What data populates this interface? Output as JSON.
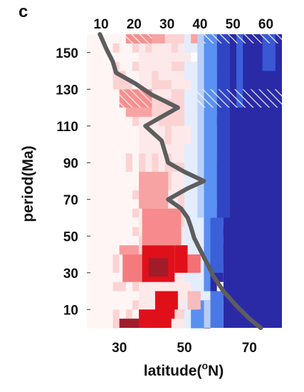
{
  "chart_data": {
    "type": "heatmap",
    "panel_label": "c",
    "xlabel_prefix": "latitude(",
    "xlabel_sup": "o",
    "xlabel_suffix": "N)",
    "ylabel": "period(Ma)",
    "x_range": [
      20,
      80
    ],
    "y_range": [
      0,
      160
    ],
    "bottom_ticks": [
      "30",
      "50",
      "70"
    ],
    "bottom_tick_values": [
      30,
      50,
      70
    ],
    "top_ticks": [
      "10",
      "20",
      "30",
      "40",
      "50",
      "60"
    ],
    "top_tick_values": [
      27.0,
      33.6,
      40.1,
      46.7,
      53.2,
      59.8
    ],
    "left_ticks": [
      "10",
      "30",
      "50",
      "70",
      "90",
      "110",
      "130",
      "150"
    ],
    "left_tick_values": [
      10,
      30,
      50,
      70,
      90,
      110,
      130,
      150
    ],
    "row_period_bins": [
      [
        0,
        5
      ],
      [
        5,
        10
      ],
      [
        10,
        15
      ],
      [
        15,
        20
      ],
      [
        20,
        25
      ],
      [
        25,
        30
      ],
      [
        30,
        35
      ],
      [
        35,
        40
      ],
      [
        40,
        45
      ],
      [
        45,
        50
      ],
      [
        50,
        55
      ],
      [
        55,
        60
      ],
      [
        60,
        65
      ],
      [
        65,
        70
      ],
      [
        70,
        75
      ],
      [
        75,
        80
      ],
      [
        80,
        85
      ],
      [
        85,
        90
      ],
      [
        90,
        95
      ],
      [
        95,
        100
      ],
      [
        100,
        105
      ],
      [
        105,
        110
      ],
      [
        110,
        115
      ],
      [
        115,
        120
      ],
      [
        120,
        125
      ],
      [
        125,
        130
      ],
      [
        130,
        135
      ],
      [
        135,
        140
      ],
      [
        140,
        145
      ],
      [
        145,
        150
      ],
      [
        150,
        155
      ],
      [
        155,
        160
      ]
    ],
    "column_latitude_step": 2,
    "value_rows_top_to_bottom": [
      "---------aaa0000aaaa----------",
      "----0--0-0---0-000001122-----",
      "-----------------000122------",
      "----0--0-----000000112-------",
      "----00----0----000001223-----",
      "----000---000---0000122------",
      "---------0---00000001122-----",
      "------aaaa000000000011223-----",
      "------aaaa00000000001223------",
      "-------0---00000000122-------",
      "------------0---0000122------",
      "------------0---00001223-----",
      "---------------00000122------",
      "------0-0-0-0--00001122------",
      "------0-0-0-00000001223------",
      "----------0-0--00001233------",
      "----------0-0--000012-3------",
      "-------0------00000122-------",
      "--------------00000012-------",
      "-------0-0----0000012--------",
      "--------------0000122--------",
      "-------0-------0001223-------",
      "--------0-0----000122--------",
      "--------0-0-0-00001223-------",
      "--------0-0-0-00001223-------",
      "-------0-0-0--0000123--------",
      "---------------000122--------",
      "----00-0--------0012---------",
      "------------0---00012--------",
      "-------0-------0012----------",
      "----0-0------000112----------",
      "----0--0-0-0---0112----------"
    ],
    "value_scale": {
      "positive_max": 3,
      "negative_min": -3
    },
    "value_colors": {
      "-3": "#8b1a2a",
      "-2": "#e00c15",
      "-1": "#f87d7f",
      "0": "#fde7e7",
      "1": "#d9e6fc",
      "2": "#4d8bf3",
      "3": "#2423a9"
    },
    "hatched_rows": [
      [
        120,
        130
      ],
      [
        155,
        160
      ]
    ],
    "hatch_color": "#ffffff",
    "hatch_bg_red": "#f88f8f",
    "hatch_bg_blue": "#3647c6",
    "line": {
      "color": "#5d5d5d",
      "points": [
        [
          73.5,
          0
        ],
        [
          70,
          5
        ],
        [
          66,
          12
        ],
        [
          62,
          20
        ],
        [
          59,
          28
        ],
        [
          57,
          35
        ],
        [
          55,
          42
        ],
        [
          53,
          49
        ],
        [
          52,
          55
        ],
        [
          51,
          60
        ],
        [
          49,
          65
        ],
        [
          45,
          70
        ],
        [
          51,
          76
        ],
        [
          56,
          80
        ],
        [
          50,
          85
        ],
        [
          45,
          90
        ],
        [
          44,
          96
        ],
        [
          43,
          102
        ],
        [
          38,
          110
        ],
        [
          43,
          115
        ],
        [
          48,
          120
        ],
        [
          40,
          127
        ],
        [
          35,
          133
        ],
        [
          29,
          139
        ],
        [
          28,
          145
        ],
        [
          26,
          152
        ],
        [
          24,
          160
        ]
      ]
    }
  }
}
